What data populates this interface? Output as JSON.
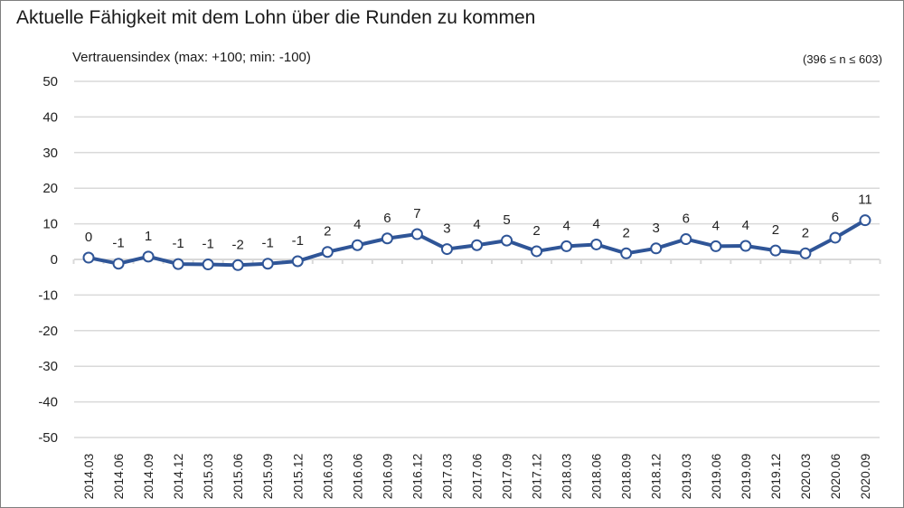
{
  "chart_data": {
    "type": "line",
    "title": "Aktuelle Fähigkeit mit dem Lohn über die Runden zu kommen",
    "ylabel": "Vertrauensindex (max: +100; min: -100)",
    "note": "(396 ≤ n ≤ 603)",
    "ylim": [
      -50,
      50
    ],
    "yticks": [
      50,
      40,
      30,
      20,
      10,
      0,
      -10,
      -20,
      -30,
      -40,
      -50
    ],
    "grid": true,
    "x": [
      "2014.03",
      "2014.06",
      "2014.09",
      "2014.12",
      "2015.03",
      "2015.06",
      "2015.09",
      "2015.12",
      "2016.03",
      "2016.06",
      "2016.09",
      "2016.12",
      "2017.03",
      "2017.06",
      "2017.09",
      "2017.12",
      "2018.03",
      "2018.06",
      "2018.09",
      "2018.12",
      "2019.03",
      "2019.06",
      "2019.09",
      "2019.12",
      "2020.03",
      "2020.06",
      "2020.09"
    ],
    "series": [
      {
        "values": [
          0.5,
          -1.2,
          0.8,
          -1.3,
          -1.4,
          -1.6,
          -1.2,
          -0.5,
          2.1,
          4.0,
          5.9,
          7.1,
          2.9,
          4.0,
          5.3,
          2.3,
          3.7,
          4.2,
          1.7,
          3.1,
          5.7,
          3.7,
          3.8,
          2.5,
          1.7,
          6.1,
          11.0
        ],
        "labels": [
          "0",
          "-1",
          "1",
          "-1",
          "-1",
          "-2",
          "-1",
          "-1",
          "2",
          "4",
          "6",
          "7",
          "3",
          "4",
          "5",
          "2",
          "4",
          "4",
          "2",
          "3",
          "6",
          "4",
          "4",
          "2",
          "2",
          "6",
          "11"
        ],
        "color": "#2f5597"
      }
    ]
  }
}
